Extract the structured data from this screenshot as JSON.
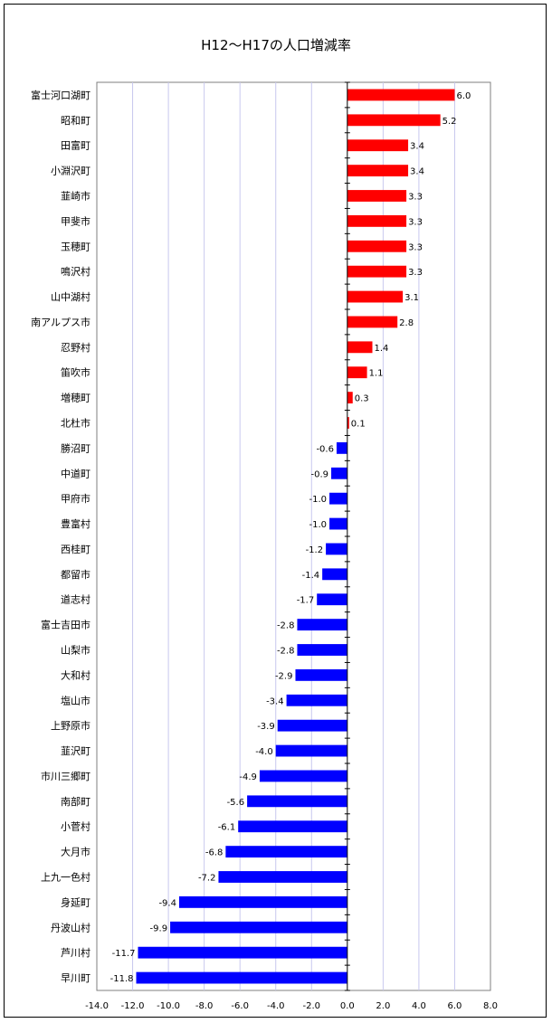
{
  "chart_data": {
    "type": "bar",
    "orientation": "horizontal",
    "title": "H12〜H17の人口増減率",
    "xlim": [
      -14.0,
      8.0
    ],
    "xticks": [
      -14.0,
      -12.0,
      -10.0,
      -8.0,
      -6.0,
      -4.0,
      -2.0,
      0.0,
      2.0,
      4.0,
      6.0,
      8.0
    ],
    "xtick_labels": [
      "-14.0",
      "-12.0",
      "-10.0",
      "-8.0",
      "-6.0",
      "-4.0",
      "-2.0",
      "0.0",
      "2.0",
      "4.0",
      "6.0",
      "8.0"
    ],
    "grid": true,
    "positive_color": "#ff0000",
    "negative_color": "#0000ff",
    "gridline_color": "#c8c8ee",
    "categories": [
      "富士河口湖町",
      "昭和町",
      "田富町",
      "小淵沢町",
      "韮崎市",
      "甲斐市",
      "玉穂町",
      "鳴沢村",
      "山中湖村",
      "南アルプス市",
      "忍野村",
      "笛吹市",
      "増穂町",
      "北杜市",
      "勝沼町",
      "中道町",
      "甲府市",
      "豊富村",
      "西桂町",
      "都留市",
      "道志村",
      "富士吉田市",
      "山梨市",
      "大和村",
      "塩山市",
      "上野原市",
      "韮沢町",
      "市川三郷町",
      "南部町",
      "小菅村",
      "大月市",
      "上九一色村",
      "身延町",
      "丹波山村",
      "芦川村",
      "早川町"
    ],
    "values": [
      6.0,
      5.2,
      3.4,
      3.4,
      3.3,
      3.3,
      3.3,
      3.3,
      3.1,
      2.8,
      1.4,
      1.1,
      0.3,
      0.1,
      -0.6,
      -0.9,
      -1.0,
      -1.0,
      -1.2,
      -1.4,
      -1.7,
      -2.8,
      -2.8,
      -2.9,
      -3.4,
      -3.9,
      -4.0,
      -4.9,
      -5.6,
      -6.1,
      -6.8,
      -7.2,
      -9.4,
      -9.9,
      -11.7,
      -11.8
    ],
    "data_labels": [
      "6.0",
      "5.2",
      "3.4",
      "3.4",
      "3.3",
      "3.3",
      "3.3",
      "3.3",
      "3.1",
      "2.8",
      "1.4",
      "1.1",
      "0.3",
      "0.1",
      "-0.6",
      "-0.9",
      "-1.0",
      "-1.0",
      "-1.2",
      "-1.4",
      "-1.7",
      "-2.8",
      "-2.8",
      "-2.9",
      "-3.4",
      "-3.9",
      "-4.0",
      "-4.9",
      "-5.6",
      "-6.1",
      "-6.8",
      "-7.2",
      "-9.4",
      "-9.9",
      "-11.7",
      "-11.8"
    ]
  }
}
